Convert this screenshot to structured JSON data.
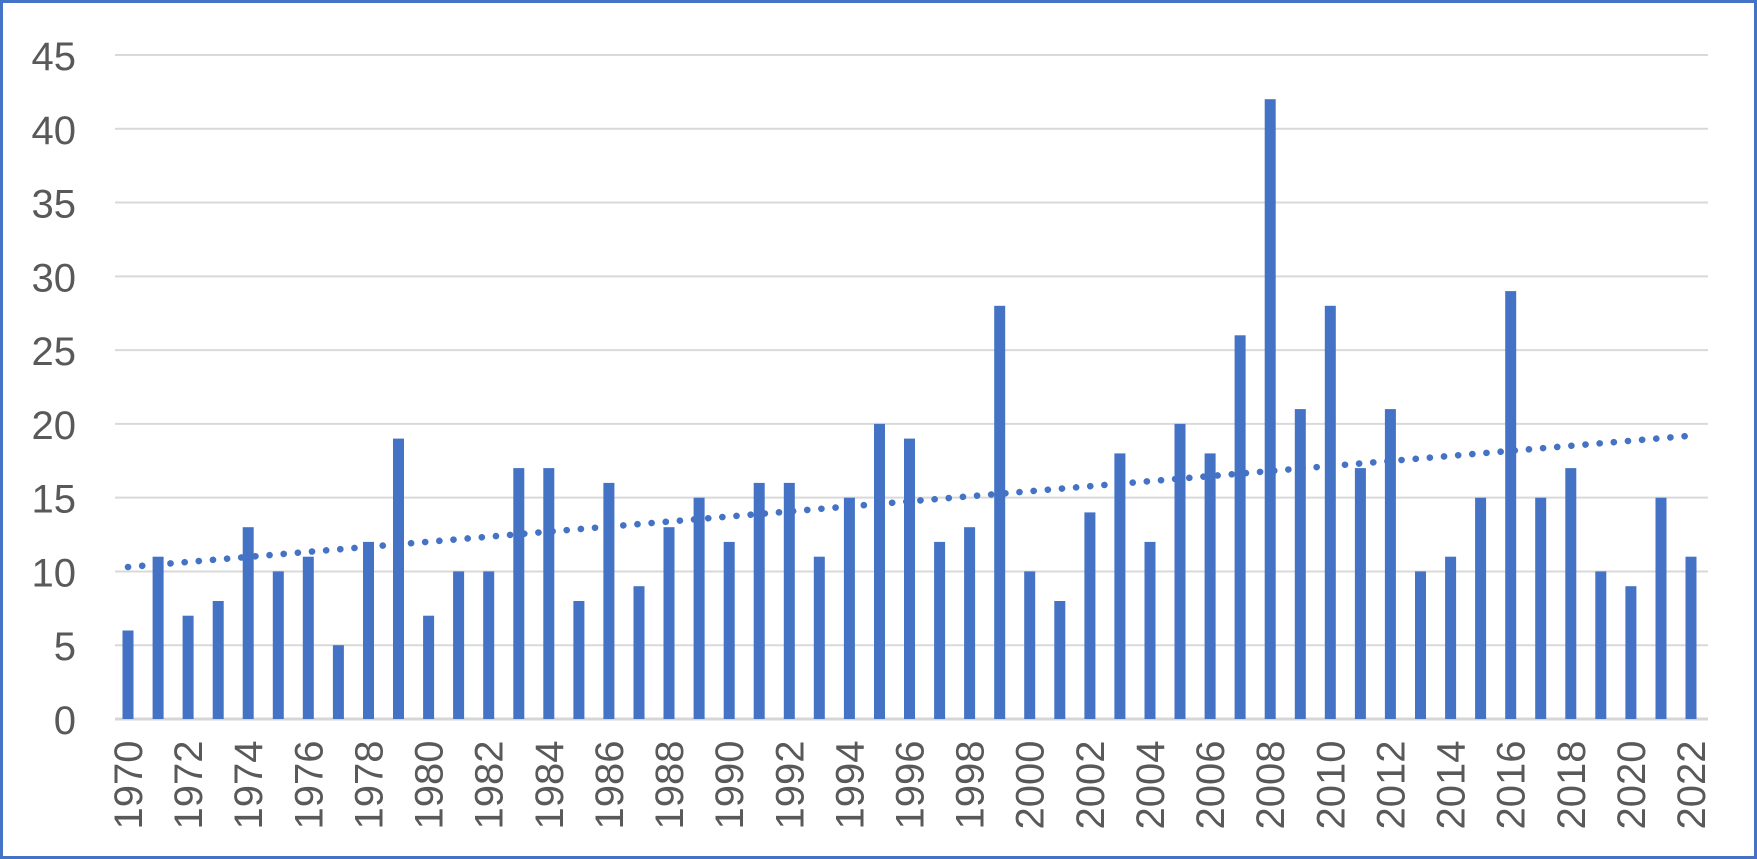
{
  "chart_data": {
    "type": "bar",
    "years": [
      1970,
      1971,
      1972,
      1973,
      1974,
      1975,
      1976,
      1977,
      1978,
      1979,
      1980,
      1981,
      1982,
      1983,
      1984,
      1985,
      1986,
      1987,
      1988,
      1989,
      1990,
      1991,
      1992,
      1993,
      1994,
      1995,
      1996,
      1997,
      1998,
      1999,
      2000,
      2001,
      2002,
      2003,
      2004,
      2005,
      2006,
      2007,
      2008,
      2009,
      2010,
      2011,
      2012,
      2013,
      2014,
      2015,
      2016,
      2017,
      2018,
      2019,
      2020,
      2021,
      2022
    ],
    "values": [
      6,
      11,
      7,
      8,
      13,
      10,
      11,
      5,
      12,
      19,
      7,
      10,
      10,
      17,
      17,
      8,
      16,
      9,
      13,
      15,
      12,
      16,
      16,
      11,
      15,
      20,
      19,
      12,
      13,
      28,
      10,
      8,
      14,
      18,
      12,
      20,
      18,
      26,
      42,
      21,
      28,
      17,
      21,
      10,
      11,
      15,
      29,
      15,
      17,
      10,
      9,
      15,
      11
    ],
    "y_ticks": [
      0,
      5,
      10,
      15,
      20,
      25,
      30,
      35,
      40,
      45
    ],
    "ylim": [
      0,
      45
    ],
    "x_tick_labels": [
      "1970",
      "1972",
      "1974",
      "1976",
      "1978",
      "1980",
      "1982",
      "1984",
      "1986",
      "1988",
      "1990",
      "1992",
      "1994",
      "1996",
      "1998",
      "2000",
      "2002",
      "2004",
      "2006",
      "2008",
      "2010",
      "2012",
      "2014",
      "2016",
      "2018",
      "2020",
      "2022"
    ],
    "grid": true,
    "legend": false,
    "trendline": {
      "style": "dotted",
      "fit": "linear",
      "start": {
        "year": 1970,
        "value": 10.3
      },
      "end": {
        "year": 2022,
        "value": 19.2
      }
    },
    "colors": {
      "bar": "#4472C4",
      "trendline": "#4472C4",
      "gridlines": "#D9D9D9",
      "axis_line": "#D6D6D6",
      "tick_labels": "#595959",
      "chart_border": "#4472C4",
      "background": "#FFFFFF"
    }
  }
}
